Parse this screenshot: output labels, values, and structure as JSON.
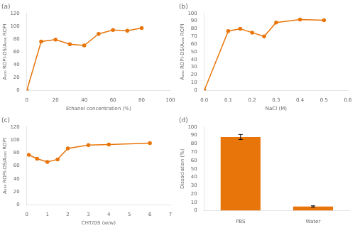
{
  "chart_data": [
    {
      "type": "line",
      "title": "(a)",
      "x": [
        0,
        10,
        20,
        30,
        40,
        50,
        60,
        70,
        80
      ],
      "values": [
        0,
        76,
        79,
        72,
        70,
        88,
        94,
        93,
        97
      ],
      "xlabel": "Ethanol concentration (%)",
      "ylabel": "A₂₀₀ ROPI-DS/A₂₀₀ ROPI",
      "xlim": [
        0,
        100
      ],
      "ylim": [
        0,
        120
      ],
      "xticks": [
        0,
        20,
        40,
        60,
        80,
        100
      ],
      "yticks": [
        0,
        20,
        40,
        60,
        80,
        100,
        120
      ],
      "color": "#E8750A",
      "marker": "circle",
      "grid": false
    },
    {
      "type": "line",
      "title": "(b)",
      "x": [
        0,
        0.1,
        0.15,
        0.2,
        0.25,
        0.3,
        0.4,
        0.5
      ],
      "values": [
        0,
        77,
        80,
        75,
        70,
        88,
        92,
        91
      ],
      "xlabel": "NaCl (M)",
      "ylabel": "A₂₀₀ ROPI-DS/A₂₀₀ ROPI",
      "xlim": [
        0,
        0.6
      ],
      "ylim": [
        0,
        100
      ],
      "xticks": [
        {
          "value": 0,
          "label": "0.0"
        },
        0.1,
        0.2,
        0.3,
        0.4,
        0.5,
        0.6
      ],
      "yticks": [
        0,
        10,
        20,
        30,
        40,
        50,
        60,
        70,
        80,
        90,
        100
      ],
      "color": "#E8750A",
      "marker": "circle",
      "grid": false
    },
    {
      "type": "line",
      "title": "(c)",
      "x": [
        0.1,
        0.5,
        1.0,
        1.5,
        2.0,
        3.0,
        4.0,
        6.0
      ],
      "values": [
        77,
        71,
        66,
        70,
        87,
        92,
        93,
        95
      ],
      "xlabel": "CHT/DS (w/w)",
      "ylabel": "A₂₀₀ ROPI-DS/A₂₀₀ ROPI",
      "xlim": [
        0,
        7
      ],
      "ylim": [
        0,
        120
      ],
      "xticks": [
        0,
        1,
        2,
        3,
        4,
        5,
        6,
        7
      ],
      "yticks": [
        0,
        20,
        40,
        60,
        80,
        100,
        120
      ],
      "color": "#E8750A",
      "marker": "circle",
      "grid": false
    },
    {
      "type": "bar",
      "title": "(d)",
      "categories": [
        "PBS",
        "Water"
      ],
      "values": [
        88,
        5
      ],
      "errors": [
        3,
        0.8
      ],
      "ylabel": "Dissociation (%)",
      "ylim": [
        0,
        100
      ],
      "yticks": [
        0,
        10,
        20,
        30,
        40,
        50,
        60,
        70,
        80,
        90,
        100
      ],
      "color": "#E8750A",
      "grid": false
    }
  ]
}
